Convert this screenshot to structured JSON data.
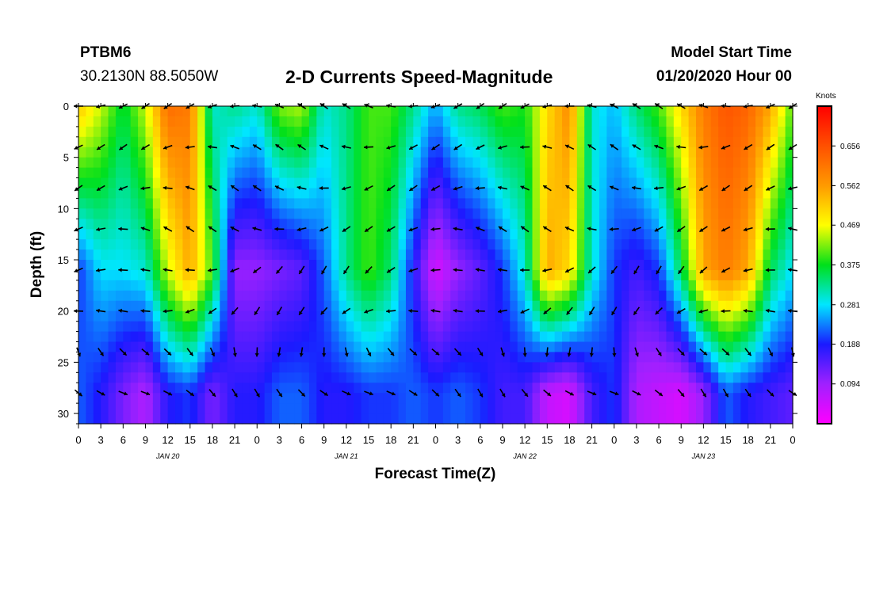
{
  "header": {
    "station": "PTBM6",
    "coords": "30.2130N 88.5050W",
    "title": "2-D Currents Speed-Magnitude",
    "model_start_label": "Model Start Time",
    "model_start_value": "01/20/2020 Hour 00"
  },
  "chart_data": {
    "type": "heatmap",
    "title": "2-D Currents Speed-Magnitude",
    "xlabel": "Forecast Time(Z)",
    "ylabel": "Depth (ft)",
    "x_hours": [
      0,
      96
    ],
    "x_tick_labels": [
      "0",
      "3",
      "6",
      "9",
      "12",
      "15",
      "18",
      "21",
      "0",
      "3",
      "6",
      "9",
      "12",
      "15",
      "18",
      "21",
      "0",
      "3",
      "6",
      "9",
      "12",
      "15",
      "18",
      "21",
      "0",
      "3",
      "6",
      "9",
      "12",
      "15",
      "18",
      "21",
      "0"
    ],
    "day_labels": [
      {
        "label": "JAN 20",
        "hour": 12
      },
      {
        "label": "JAN 21",
        "hour": 36
      },
      {
        "label": "JAN 22",
        "hour": 60
      },
      {
        "label": "JAN 23",
        "hour": 84
      }
    ],
    "ylim": [
      0,
      31
    ],
    "y_ticks": [
      "0",
      "5",
      "10",
      "15",
      "20",
      "25",
      "30"
    ],
    "colorbar": {
      "title": "Knots",
      "range": [
        0,
        0.75
      ],
      "tick_labels": [
        "0.656",
        "0.562",
        "0.469",
        "0.375",
        "0.281",
        "0.188",
        "0.094"
      ]
    },
    "arrow_depths_ft": [
      0,
      4,
      8,
      12,
      16,
      20,
      24,
      28
    ],
    "speed_samples_knots": {
      "hours": [
        0,
        3,
        6,
        9,
        12,
        15,
        18,
        21,
        24,
        27,
        30,
        33,
        36,
        39,
        42,
        45,
        48,
        51,
        54,
        57,
        60,
        63,
        66,
        69,
        72,
        75,
        78,
        81,
        84,
        87,
        90,
        93,
        96
      ],
      "depth_0ft": [
        0.52,
        0.45,
        0.36,
        0.45,
        0.62,
        0.6,
        0.3,
        0.33,
        0.3,
        0.42,
        0.44,
        0.3,
        0.33,
        0.4,
        0.4,
        0.33,
        0.25,
        0.33,
        0.35,
        0.4,
        0.38,
        0.5,
        0.58,
        0.3,
        0.26,
        0.34,
        0.4,
        0.5,
        0.6,
        0.65,
        0.63,
        0.55,
        0.4
      ],
      "depth_16ft": [
        0.2,
        0.28,
        0.28,
        0.3,
        0.45,
        0.55,
        0.4,
        0.1,
        0.1,
        0.12,
        0.14,
        0.22,
        0.33,
        0.4,
        0.34,
        0.18,
        0.04,
        0.1,
        0.14,
        0.2,
        0.3,
        0.55,
        0.5,
        0.3,
        0.2,
        0.16,
        0.2,
        0.35,
        0.55,
        0.6,
        0.55,
        0.35,
        0.28
      ],
      "depth_28ft": [
        0.22,
        0.18,
        0.12,
        0.08,
        0.18,
        0.2,
        0.12,
        0.18,
        0.18,
        0.22,
        0.22,
        0.18,
        0.18,
        0.2,
        0.2,
        0.22,
        0.2,
        0.22,
        0.2,
        0.16,
        0.16,
        0.06,
        0.04,
        0.16,
        0.2,
        0.08,
        0.06,
        0.04,
        0.1,
        0.22,
        0.18,
        0.16,
        0.14
      ]
    }
  }
}
